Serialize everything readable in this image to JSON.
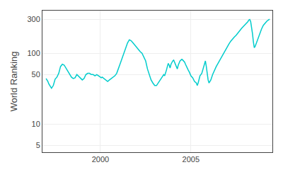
{
  "chart_data": {
    "type": "line",
    "ylabel": "World Ranking",
    "color": "#00cccc",
    "log": "y",
    "grid": true,
    "xlim": [
      1996.8,
      2009.5
    ],
    "xticks": [
      2000,
      2005
    ],
    "ylim": [
      4,
      400
    ],
    "yticks": [
      5,
      10,
      50,
      100,
      300
    ],
    "x": [
      1997,
      1997.05,
      1997.1,
      1997.15,
      1997.2,
      1997.3,
      1997.4,
      1997.5,
      1997.6,
      1997.7,
      1997.8,
      1997.9,
      1998,
      1998.1,
      1998.2,
      1998.3,
      1998.4,
      1998.5,
      1998.6,
      1998.7,
      1998.8,
      1998.9,
      1999,
      1999.1,
      1999.2,
      1999.3,
      1999.4,
      1999.5,
      1999.6,
      1999.7,
      1999.8,
      1999.9,
      2000,
      2000.05,
      2000.1,
      2000.2,
      2000.3,
      2000.4,
      2000.5,
      2000.6,
      2000.7,
      2000.8,
      2000.9,
      2001,
      2001.1,
      2001.2,
      2001.3,
      2001.4,
      2001.5,
      2001.6,
      2001.7,
      2001.8,
      2001.9,
      2002,
      2002.1,
      2002.2,
      2002.3,
      2002.4,
      2002.5,
      2002.6,
      2002.7,
      2002.8,
      2002.9,
      2003,
      2003.1,
      2003.2,
      2003.3,
      2003.4,
      2003.5,
      2003.55,
      2003.6,
      2003.65,
      2003.7,
      2003.75,
      2003.8,
      2003.85,
      2003.9,
      2003.95,
      2004,
      2004.05,
      2004.1,
      2004.15,
      2004.2,
      2004.25,
      2004.3,
      2004.35,
      2004.4,
      2004.45,
      2004.5,
      2004.55,
      2004.6,
      2004.65,
      2004.7,
      2004.75,
      2004.8,
      2004.85,
      2004.9,
      2004.95,
      2005,
      2005.1,
      2005.15,
      2005.2,
      2005.3,
      2005.35,
      2005.4,
      2005.45,
      2005.5,
      2005.6,
      2005.65,
      2005.7,
      2005.75,
      2005.8,
      2005.85,
      2005.9,
      2005.95,
      2006,
      2006.1,
      2006.2,
      2006.3,
      2006.4,
      2006.5,
      2006.6,
      2006.7,
      2006.8,
      2006.9,
      2007,
      2007.1,
      2007.2,
      2007.3,
      2007.4,
      2007.5,
      2007.6,
      2007.7,
      2007.8,
      2007.9,
      2008,
      2008.1,
      2008.15,
      2008.2,
      2008.25,
      2008.3,
      2008.35,
      2008.4,
      2008.45,
      2008.5,
      2008.55,
      2008.6,
      2008.65,
      2008.7,
      2008.8,
      2008.9,
      2009,
      2009.1,
      2009.2,
      2009.3,
      2009.35
    ],
    "values": [
      44,
      42,
      40,
      37,
      35,
      32,
      35,
      43,
      46,
      52,
      65,
      70,
      68,
      62,
      55,
      50,
      46,
      44,
      45,
      50,
      47,
      44,
      42,
      44,
      50,
      52,
      52,
      50,
      50,
      48,
      50,
      48,
      46,
      45,
      46,
      44,
      42,
      40,
      42,
      44,
      46,
      48,
      52,
      60,
      72,
      85,
      100,
      120,
      140,
      155,
      150,
      140,
      130,
      120,
      110,
      105,
      100,
      88,
      78,
      60,
      50,
      42,
      38,
      35,
      35,
      38,
      42,
      46,
      50,
      48,
      52,
      58,
      65,
      72,
      68,
      62,
      70,
      75,
      78,
      80,
      75,
      70,
      65,
      60,
      68,
      75,
      78,
      80,
      82,
      80,
      78,
      75,
      70,
      65,
      60,
      58,
      55,
      52,
      48,
      45,
      42,
      40,
      38,
      35,
      38,
      42,
      48,
      52,
      58,
      65,
      72,
      78,
      65,
      52,
      42,
      38,
      42,
      50,
      58,
      65,
      72,
      80,
      90,
      100,
      112,
      125,
      135,
      148,
      160,
      170,
      180,
      195,
      210,
      225,
      240,
      255,
      268,
      280,
      295,
      300,
      280,
      240,
      190,
      145,
      120,
      125,
      135,
      148,
      165,
      190,
      220,
      248,
      268,
      285,
      298,
      302
    ]
  }
}
